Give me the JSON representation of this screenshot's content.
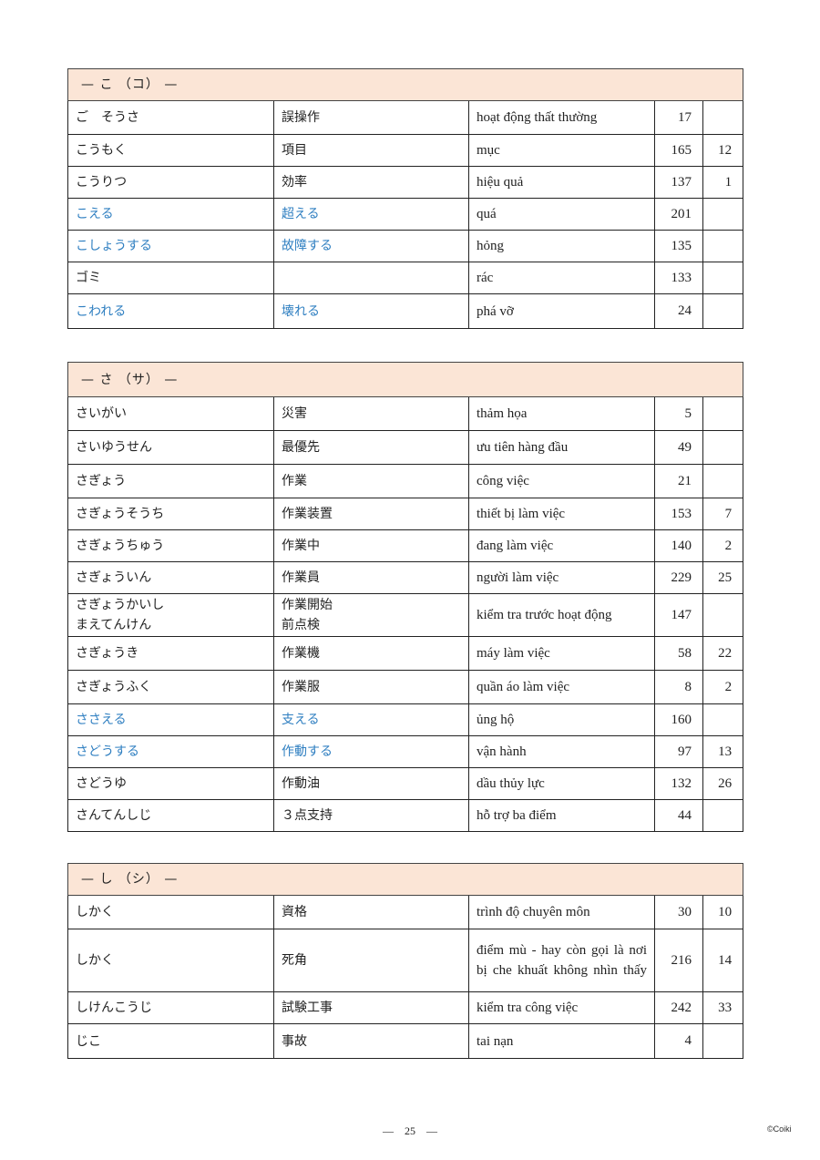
{
  "sections": [
    {
      "header": "—  こ  （コ）  —",
      "rows": [
        {
          "kana": "ご　そうさ",
          "kanji": "誤操作",
          "vi": "hoạt động thất thường",
          "page": "17",
          "num": "",
          "highlight": false
        },
        {
          "kana": "こうもく",
          "kanji": "項目",
          "vi": "mục",
          "page": "165",
          "num": "12",
          "highlight": false
        },
        {
          "kana": "こうりつ",
          "kanji": "効率",
          "vi": "hiệu quả",
          "page": "137",
          "num": "1",
          "highlight": false
        },
        {
          "kana": "こえる",
          "kanji": "超える",
          "vi": "quá",
          "page": "201",
          "num": "",
          "highlight": true
        },
        {
          "kana": "こしょうする",
          "kanji": "故障する",
          "vi": "hỏng",
          "page": "135",
          "num": "",
          "highlight": true
        },
        {
          "kana": "ゴミ",
          "kanji": "",
          "vi": "rác",
          "page": "133",
          "num": "",
          "highlight": false
        },
        {
          "kana": "こわれる",
          "kanji": "壊れる",
          "vi": "phá vỡ",
          "page": "24",
          "num": "",
          "highlight": true
        }
      ]
    },
    {
      "header": "—  さ  （サ）  —",
      "rows": [
        {
          "kana": "さいがい",
          "kanji": "災害",
          "vi": "thảm họa",
          "page": "5",
          "num": "",
          "highlight": false
        },
        {
          "kana": "さいゆうせん",
          "kanji": "最優先",
          "vi": "ưu tiên hàng đầu",
          "page": "49",
          "num": "",
          "highlight": false
        },
        {
          "kana": "さぎょう",
          "kanji": "作業",
          "vi": "công việc",
          "page": "21",
          "num": "",
          "highlight": false
        },
        {
          "kana": "さぎょうそうち",
          "kanji": "作業装置",
          "vi": "thiết bị làm việc",
          "page": "153",
          "num": "7",
          "highlight": false
        },
        {
          "kana": "さぎょうちゅう",
          "kanji": "作業中",
          "vi": "đang làm việc",
          "page": "140",
          "num": "2",
          "highlight": false
        },
        {
          "kana": "さぎょういん",
          "kanji": "作業員",
          "vi": "người làm việc",
          "page": "229",
          "num": "25",
          "highlight": false
        },
        {
          "kana": "さぎょうかいし\nまえてんけん",
          "kanji": "作業開始\n前点検",
          "vi": "kiểm tra trước hoạt động",
          "page": "147",
          "num": "",
          "highlight": false
        },
        {
          "kana": "さぎょうき",
          "kanji": "作業機",
          "vi": "máy làm việc",
          "page": "58",
          "num": "22",
          "highlight": false
        },
        {
          "kana": "さぎょうふく",
          "kanji": "作業服",
          "vi": "quần áo làm việc",
          "page": "8",
          "num": "2",
          "highlight": false
        },
        {
          "kana": "ささえる",
          "kanji": "支える",
          "vi": "ủng hộ",
          "page": "160",
          "num": "",
          "highlight": true
        },
        {
          "kana": "さどうする",
          "kanji": "作動する",
          "vi": "vận hành",
          "page": "97",
          "num": "13",
          "highlight": true
        },
        {
          "kana": "さどうゆ",
          "kanji": "作動油",
          "vi": "dầu thủy lực",
          "page": "132",
          "num": "26",
          "highlight": false
        },
        {
          "kana": "さんてんしじ",
          "kanji": "３点支持",
          "vi": "hỗ trợ ba điểm",
          "page": "44",
          "num": "",
          "highlight": false
        }
      ]
    },
    {
      "header": "—  し  （シ）  —",
      "rows": [
        {
          "kana": "しかく",
          "kanji": "資格",
          "vi": "trình  độ chuyên môn",
          "page": "30",
          "num": "10",
          "highlight": false
        },
        {
          "kana": "しかく",
          "kanji": "死角",
          "vi": "điểm mù - hay còn gọi là nơi bị che khuất không nhìn thấy",
          "page": "216",
          "num": "14",
          "highlight": false
        },
        {
          "kana": "しけんこうじ",
          "kanji": "試験工事",
          "vi": "kiểm tra công việc",
          "page": "242",
          "num": "33",
          "highlight": false
        },
        {
          "kana": "じこ",
          "kanji": "事故",
          "vi": "tai nạn",
          "page": "4",
          "num": "",
          "highlight": false
        }
      ]
    }
  ],
  "footer": {
    "page_number": "—　25　—",
    "copyright": "©Coiki"
  },
  "colors": {
    "header_bg": "#fbe5d6",
    "highlight_text": "#2f7fc1"
  }
}
